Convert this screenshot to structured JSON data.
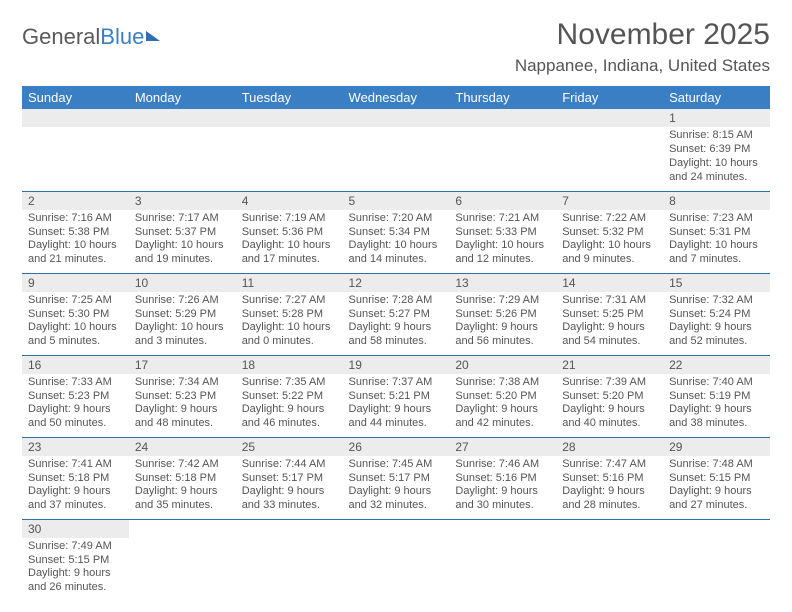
{
  "logo": {
    "text1": "General",
    "text2": "Blue"
  },
  "title": "November 2025",
  "location": "Nappanee, Indiana, United States",
  "day_headers": [
    "Sunday",
    "Monday",
    "Tuesday",
    "Wednesday",
    "Thursday",
    "Friday",
    "Saturday"
  ],
  "colors": {
    "header_bg": "#3a7fc4",
    "row_border": "#2f6fb0",
    "daynum_bg": "#ececec",
    "text": "#555555"
  },
  "weeks": [
    [
      null,
      null,
      null,
      null,
      null,
      null,
      {
        "n": "1",
        "sunrise": "Sunrise: 8:15 AM",
        "sunset": "Sunset: 6:39 PM",
        "daylight": "Daylight: 10 hours and 24 minutes."
      }
    ],
    [
      {
        "n": "2",
        "sunrise": "Sunrise: 7:16 AM",
        "sunset": "Sunset: 5:38 PM",
        "daylight": "Daylight: 10 hours and 21 minutes."
      },
      {
        "n": "3",
        "sunrise": "Sunrise: 7:17 AM",
        "sunset": "Sunset: 5:37 PM",
        "daylight": "Daylight: 10 hours and 19 minutes."
      },
      {
        "n": "4",
        "sunrise": "Sunrise: 7:19 AM",
        "sunset": "Sunset: 5:36 PM",
        "daylight": "Daylight: 10 hours and 17 minutes."
      },
      {
        "n": "5",
        "sunrise": "Sunrise: 7:20 AM",
        "sunset": "Sunset: 5:34 PM",
        "daylight": "Daylight: 10 hours and 14 minutes."
      },
      {
        "n": "6",
        "sunrise": "Sunrise: 7:21 AM",
        "sunset": "Sunset: 5:33 PM",
        "daylight": "Daylight: 10 hours and 12 minutes."
      },
      {
        "n": "7",
        "sunrise": "Sunrise: 7:22 AM",
        "sunset": "Sunset: 5:32 PM",
        "daylight": "Daylight: 10 hours and 9 minutes."
      },
      {
        "n": "8",
        "sunrise": "Sunrise: 7:23 AM",
        "sunset": "Sunset: 5:31 PM",
        "daylight": "Daylight: 10 hours and 7 minutes."
      }
    ],
    [
      {
        "n": "9",
        "sunrise": "Sunrise: 7:25 AM",
        "sunset": "Sunset: 5:30 PM",
        "daylight": "Daylight: 10 hours and 5 minutes."
      },
      {
        "n": "10",
        "sunrise": "Sunrise: 7:26 AM",
        "sunset": "Sunset: 5:29 PM",
        "daylight": "Daylight: 10 hours and 3 minutes."
      },
      {
        "n": "11",
        "sunrise": "Sunrise: 7:27 AM",
        "sunset": "Sunset: 5:28 PM",
        "daylight": "Daylight: 10 hours and 0 minutes."
      },
      {
        "n": "12",
        "sunrise": "Sunrise: 7:28 AM",
        "sunset": "Sunset: 5:27 PM",
        "daylight": "Daylight: 9 hours and 58 minutes."
      },
      {
        "n": "13",
        "sunrise": "Sunrise: 7:29 AM",
        "sunset": "Sunset: 5:26 PM",
        "daylight": "Daylight: 9 hours and 56 minutes."
      },
      {
        "n": "14",
        "sunrise": "Sunrise: 7:31 AM",
        "sunset": "Sunset: 5:25 PM",
        "daylight": "Daylight: 9 hours and 54 minutes."
      },
      {
        "n": "15",
        "sunrise": "Sunrise: 7:32 AM",
        "sunset": "Sunset: 5:24 PM",
        "daylight": "Daylight: 9 hours and 52 minutes."
      }
    ],
    [
      {
        "n": "16",
        "sunrise": "Sunrise: 7:33 AM",
        "sunset": "Sunset: 5:23 PM",
        "daylight": "Daylight: 9 hours and 50 minutes."
      },
      {
        "n": "17",
        "sunrise": "Sunrise: 7:34 AM",
        "sunset": "Sunset: 5:23 PM",
        "daylight": "Daylight: 9 hours and 48 minutes."
      },
      {
        "n": "18",
        "sunrise": "Sunrise: 7:35 AM",
        "sunset": "Sunset: 5:22 PM",
        "daylight": "Daylight: 9 hours and 46 minutes."
      },
      {
        "n": "19",
        "sunrise": "Sunrise: 7:37 AM",
        "sunset": "Sunset: 5:21 PM",
        "daylight": "Daylight: 9 hours and 44 minutes."
      },
      {
        "n": "20",
        "sunrise": "Sunrise: 7:38 AM",
        "sunset": "Sunset: 5:20 PM",
        "daylight": "Daylight: 9 hours and 42 minutes."
      },
      {
        "n": "21",
        "sunrise": "Sunrise: 7:39 AM",
        "sunset": "Sunset: 5:20 PM",
        "daylight": "Daylight: 9 hours and 40 minutes."
      },
      {
        "n": "22",
        "sunrise": "Sunrise: 7:40 AM",
        "sunset": "Sunset: 5:19 PM",
        "daylight": "Daylight: 9 hours and 38 minutes."
      }
    ],
    [
      {
        "n": "23",
        "sunrise": "Sunrise: 7:41 AM",
        "sunset": "Sunset: 5:18 PM",
        "daylight": "Daylight: 9 hours and 37 minutes."
      },
      {
        "n": "24",
        "sunrise": "Sunrise: 7:42 AM",
        "sunset": "Sunset: 5:18 PM",
        "daylight": "Daylight: 9 hours and 35 minutes."
      },
      {
        "n": "25",
        "sunrise": "Sunrise: 7:44 AM",
        "sunset": "Sunset: 5:17 PM",
        "daylight": "Daylight: 9 hours and 33 minutes."
      },
      {
        "n": "26",
        "sunrise": "Sunrise: 7:45 AM",
        "sunset": "Sunset: 5:17 PM",
        "daylight": "Daylight: 9 hours and 32 minutes."
      },
      {
        "n": "27",
        "sunrise": "Sunrise: 7:46 AM",
        "sunset": "Sunset: 5:16 PM",
        "daylight": "Daylight: 9 hours and 30 minutes."
      },
      {
        "n": "28",
        "sunrise": "Sunrise: 7:47 AM",
        "sunset": "Sunset: 5:16 PM",
        "daylight": "Daylight: 9 hours and 28 minutes."
      },
      {
        "n": "29",
        "sunrise": "Sunrise: 7:48 AM",
        "sunset": "Sunset: 5:15 PM",
        "daylight": "Daylight: 9 hours and 27 minutes."
      }
    ],
    [
      {
        "n": "30",
        "sunrise": "Sunrise: 7:49 AM",
        "sunset": "Sunset: 5:15 PM",
        "daylight": "Daylight: 9 hours and 26 minutes."
      },
      null,
      null,
      null,
      null,
      null,
      null
    ]
  ]
}
